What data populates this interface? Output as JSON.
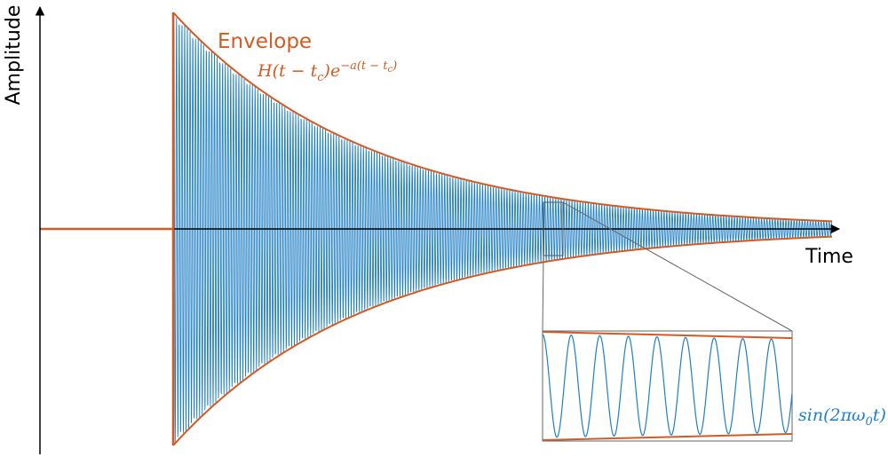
{
  "axes": {
    "x_label": "Time",
    "y_label": "Amplitude"
  },
  "annotations": {
    "envelope_label": "Envelope",
    "envelope_formula": {
      "prefix": "H(t − t",
      "sub1": "c",
      "mid": ")e",
      "sup": "−a(t − t",
      "sup_sub": "c",
      "sup_close": ")"
    },
    "inset_formula": {
      "prefix": "sin(2πω",
      "sub": "0",
      "suffix": "t)"
    }
  },
  "colors": {
    "envelope": "#d45a22",
    "signal": "#1f7fc4",
    "axis": "#000000",
    "inset_border": "#666666"
  }
}
